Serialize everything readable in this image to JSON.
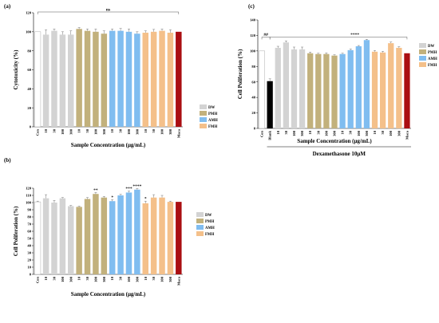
{
  "figure": {
    "panels": [
      "(a)",
      "(b)",
      "(c)"
    ]
  },
  "legend_colors": {
    "DW": "#d3d3d3",
    "PMH": "#c2b17c",
    "AMH": "#80bdf0",
    "FMH": "#f4c08a",
    "Maca": "#aa0e12",
    "Blank": "#000000",
    "Con": "#ffffff"
  },
  "chart_data": [
    {
      "panel": "(a)",
      "type": "bar",
      "ylabel": "Cytotoxicity (%)",
      "xlabel": "Sample Concentration (μg/mL)",
      "ylim": [
        0,
        120
      ],
      "yticks": [
        0,
        20,
        40,
        60,
        80,
        100,
        120
      ],
      "categories": [
        "Con",
        "10",
        "30",
        "100",
        "300",
        "10",
        "30",
        "100",
        "300",
        "10",
        "30",
        "100",
        "300",
        "10",
        "30",
        "100",
        "300",
        "Maca"
      ],
      "groups": [
        "Con",
        "DW",
        "DW",
        "DW",
        "DW",
        "PMH",
        "PMH",
        "PMH",
        "PMH",
        "AMH",
        "AMH",
        "AMH",
        "AMH",
        "FMH",
        "FMH",
        "FMH",
        "FMH",
        "Maca"
      ],
      "values": [
        100,
        97,
        101,
        97,
        97,
        103,
        101,
        100,
        98,
        101,
        101,
        100,
        98,
        99,
        100,
        101,
        99,
        100
      ],
      "errors": [
        0,
        5,
        2,
        3,
        4,
        1.5,
        2,
        3,
        3,
        2,
        2.5,
        3,
        2,
        2,
        2.5,
        2,
        3,
        0
      ],
      "legend": [
        "DW",
        "PMH",
        "AMH",
        "FMH"
      ],
      "legend_position": "right",
      "annotations": [
        {
          "text": "ns",
          "bracket_from": 0,
          "bracket_to": 17
        }
      ],
      "grid": false
    },
    {
      "panel": "(b)",
      "type": "bar",
      "ylabel": "Cell Poliferation (%)",
      "xlabel": "Sample Concentration (μg/mL)",
      "ylim": [
        0,
        120
      ],
      "yticks": [
        0,
        10,
        20,
        30,
        40,
        50,
        60,
        70,
        80,
        90,
        100,
        110,
        120
      ],
      "categories": [
        "Con",
        "10",
        "30",
        "100",
        "300",
        "10",
        "30",
        "100",
        "300",
        "10",
        "30",
        "100",
        "300",
        "10",
        "30",
        "100",
        "300",
        "Maca"
      ],
      "groups": [
        "Con",
        "DW",
        "DW",
        "DW",
        "DW",
        "PMH",
        "PMH",
        "PMH",
        "PMH",
        "AMH",
        "AMH",
        "AMH",
        "AMH",
        "FMH",
        "FMH",
        "FMH",
        "FMH",
        "Maca"
      ],
      "values": [
        101,
        106,
        100,
        106,
        95,
        94,
        105,
        112,
        107,
        102,
        110,
        114,
        118,
        99,
        107,
        107,
        101,
        101
      ],
      "errors": [
        1,
        5,
        3,
        1,
        1,
        1,
        2,
        2,
        1.5,
        2,
        1.5,
        2,
        1.5,
        3,
        4,
        3,
        1,
        0
      ],
      "significance": [
        "",
        "",
        "",
        "",
        "",
        "",
        "",
        "**",
        "",
        "*",
        "",
        "***",
        "****",
        "*",
        "",
        "",
        "",
        ""
      ],
      "legend": [
        "DW",
        "PMH",
        "AMH",
        "FMH"
      ],
      "legend_position": "right",
      "grid": false
    },
    {
      "panel": "(c)",
      "type": "bar",
      "ylabel": "Cell Poliferation (%)",
      "xlabel": "Sample Concentration (μg/mL)",
      "condition_label": "Dexamethasone 10μM",
      "ylim": [
        0,
        140
      ],
      "yticks": [
        0,
        20,
        40,
        60,
        80,
        100,
        120,
        140
      ],
      "categories": [
        "Con",
        "Blank",
        "10",
        "30",
        "100",
        "300",
        "10",
        "30",
        "100",
        "300",
        "10",
        "30",
        "100",
        "300",
        "10",
        "30",
        "100",
        "300",
        "Maca"
      ],
      "groups": [
        "Con",
        "Blank",
        "DW",
        "DW",
        "DW",
        "DW",
        "PMH",
        "PMH",
        "PMH",
        "PMH",
        "AMH",
        "AMH",
        "AMH",
        "AMH",
        "FMH",
        "FMH",
        "FMH",
        "FMH",
        "Maca"
      ],
      "values": [
        100,
        61,
        104,
        111,
        102,
        102,
        97,
        96,
        96,
        94,
        96,
        101,
        106,
        114,
        99,
        98,
        110,
        104,
        97
      ],
      "errors": [
        0,
        3,
        2,
        2,
        3,
        3,
        1.5,
        1,
        1.5,
        1,
        1,
        1.5,
        1,
        1,
        1.5,
        1.5,
        1.5,
        1.5,
        0
      ],
      "legend": [
        "DW",
        "PMH",
        "AMH",
        "FMH"
      ],
      "legend_position": "right",
      "annotations": [
        {
          "text": "##",
          "bracket_from": 0,
          "bracket_to": 1
        },
        {
          "text": "****",
          "bracket_from": 1,
          "bracket_to": 18
        }
      ],
      "grid": false
    }
  ]
}
